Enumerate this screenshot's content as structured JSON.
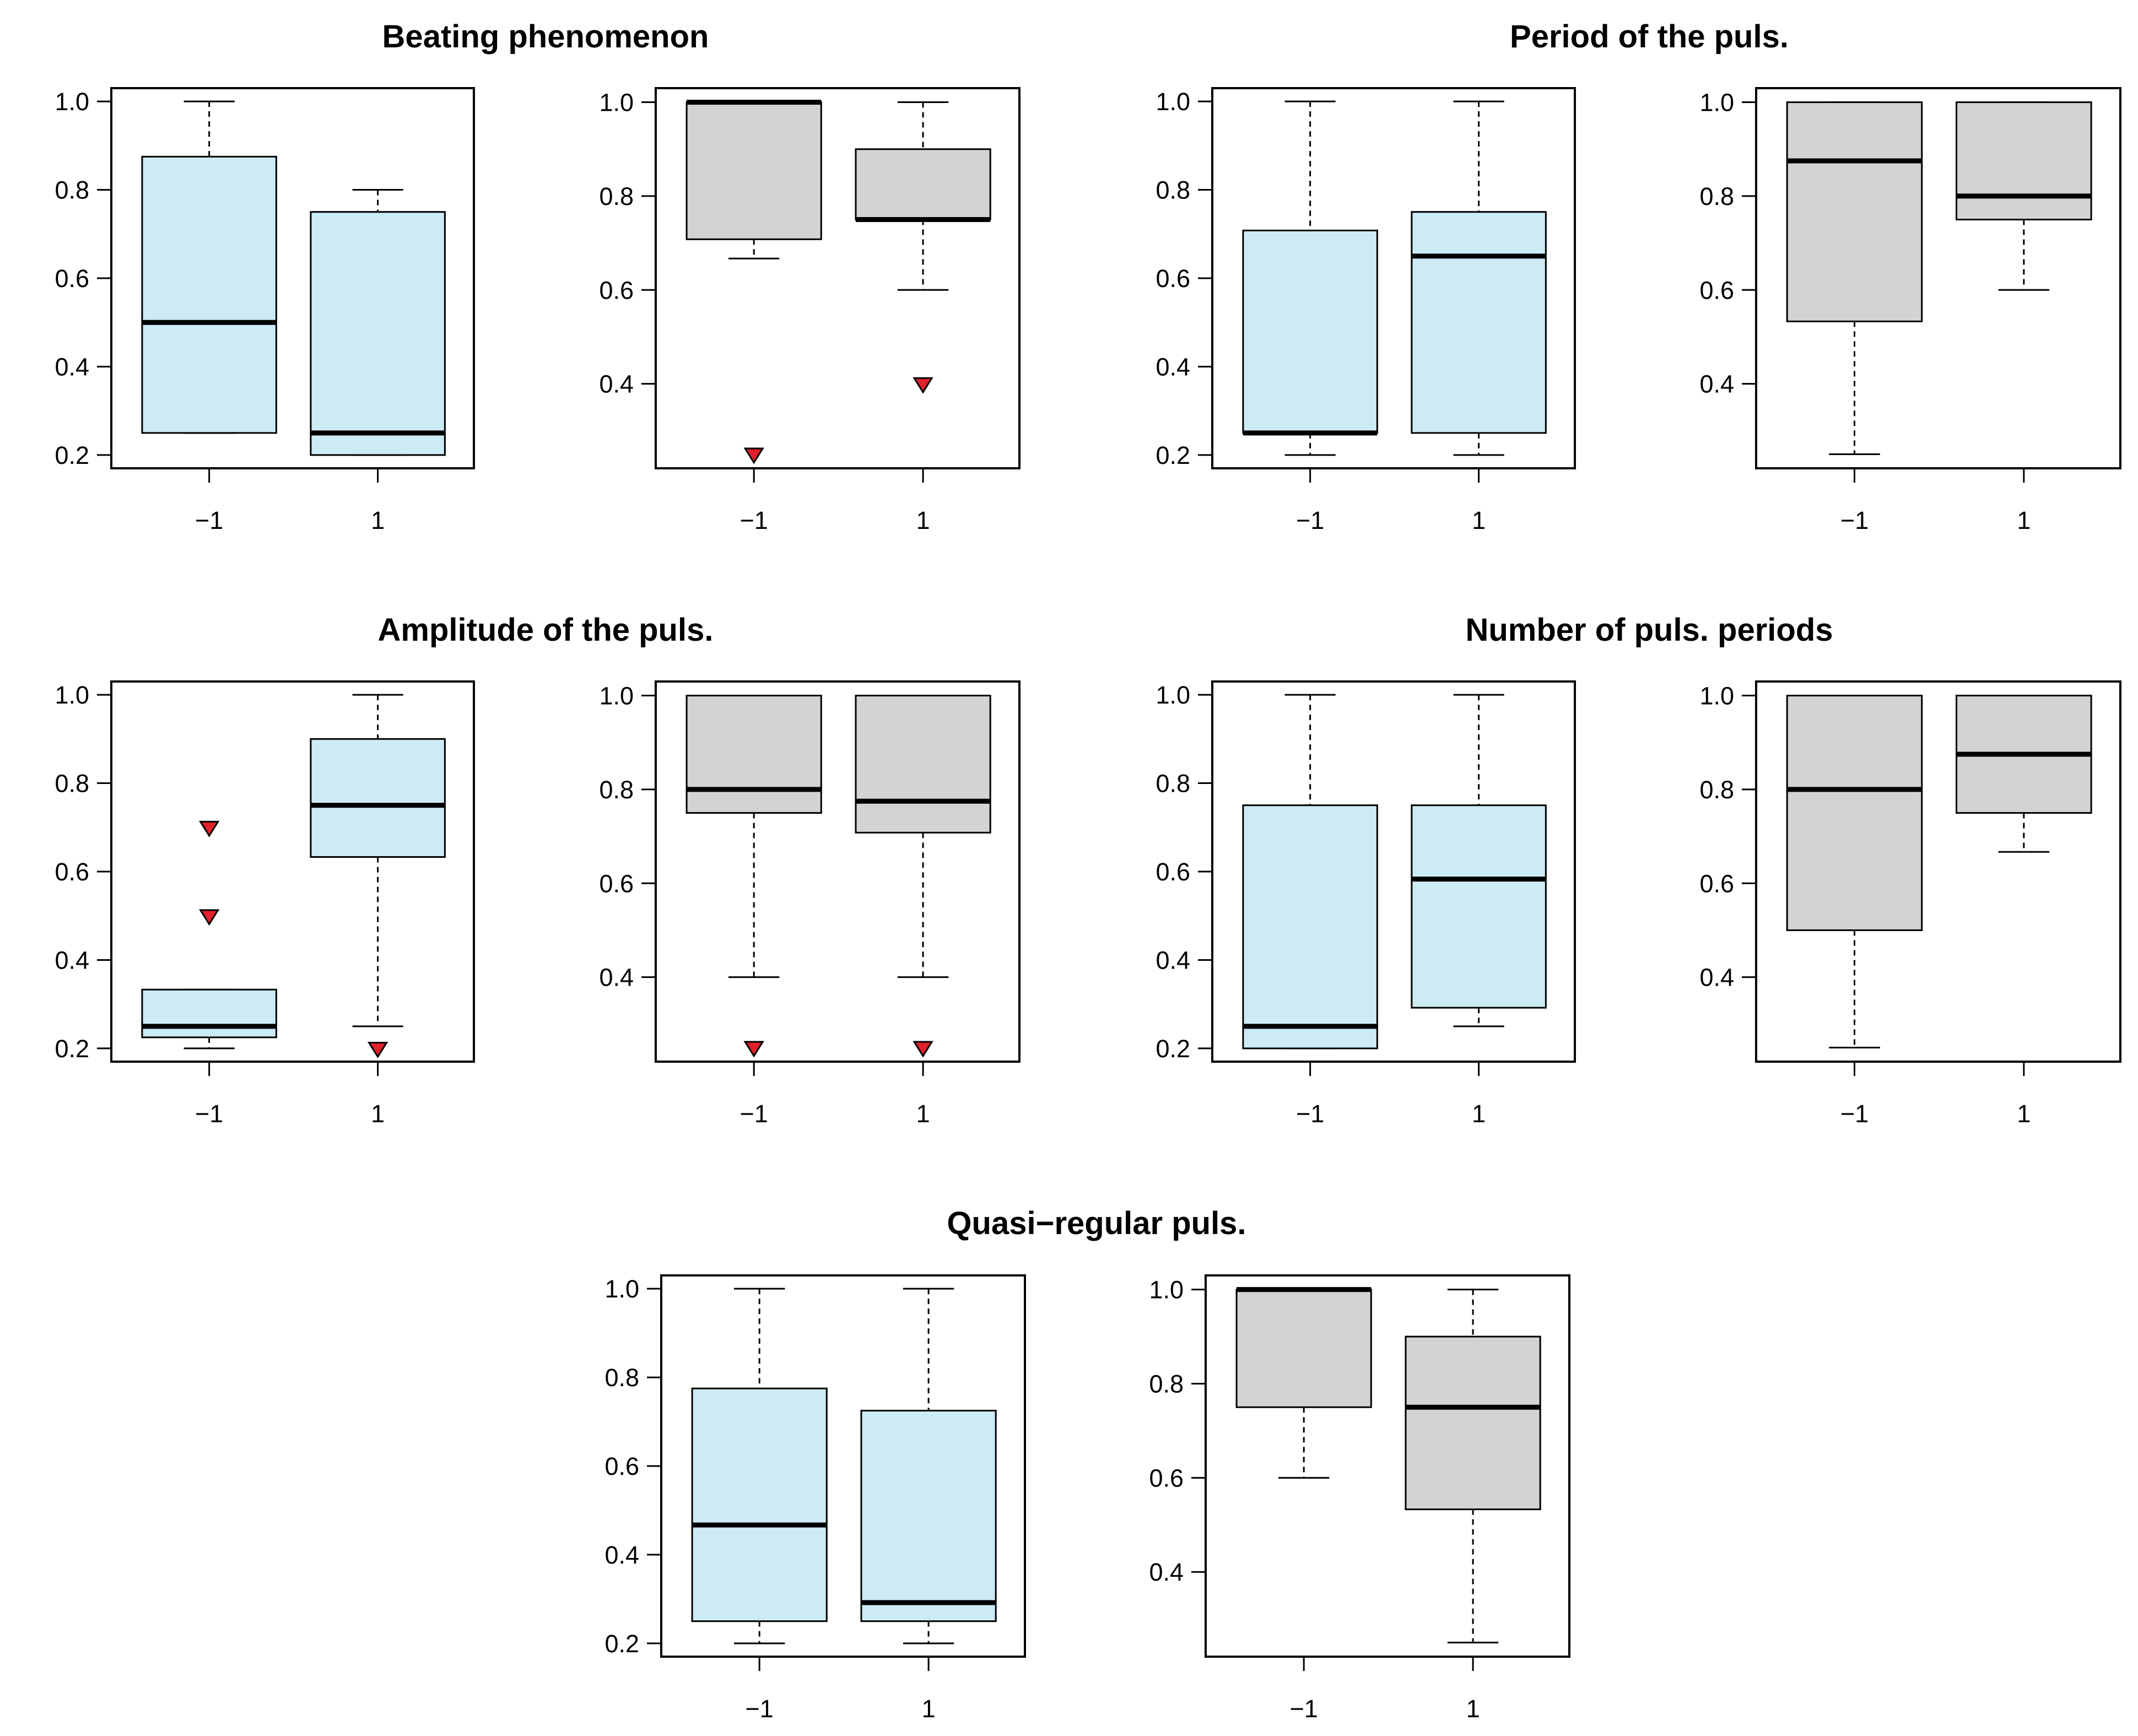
{
  "figure": {
    "colors": {
      "box_fill_a": "#cdebf4",
      "box_fill_b": "#d3d3d3",
      "outlier_fill": "#e0202a",
      "stroke": "#000000",
      "background": "#ffffff"
    }
  },
  "chart_data": [
    {
      "type": "boxplot",
      "group_title": "Beating phenomenon",
      "panel": "left",
      "fill": "box_fill_a",
      "categories": [
        "−1",
        "1"
      ],
      "ylim": [
        0.17,
        1.03
      ],
      "yticks": [
        "0.2",
        "0.4",
        "0.6",
        "0.8",
        "1.0"
      ],
      "boxes": [
        {
          "whisker_low": 0.25,
          "q1": 0.25,
          "median": 0.5,
          "q3": 0.875,
          "whisker_high": 1.0,
          "outliers": []
        },
        {
          "whisker_low": 0.2,
          "q1": 0.2,
          "median": 0.25,
          "q3": 0.75,
          "whisker_high": 0.8,
          "outliers": []
        }
      ]
    },
    {
      "type": "boxplot",
      "group_title": "",
      "panel": "right",
      "fill": "box_fill_b",
      "categories": [
        "−1",
        "1"
      ],
      "ylim": [
        0.22,
        1.03
      ],
      "yticks": [
        "0.4",
        "0.6",
        "0.8",
        "1.0"
      ],
      "boxes": [
        {
          "whisker_low": 0.667,
          "q1": 0.708,
          "median": 1.0,
          "q3": 1.0,
          "whisker_high": 1.0,
          "outliers": [
            0.25
          ]
        },
        {
          "whisker_low": 0.6,
          "q1": 0.75,
          "median": 0.75,
          "q3": 0.9,
          "whisker_high": 1.0,
          "outliers": [
            0.4
          ]
        }
      ]
    },
    {
      "type": "boxplot",
      "group_title": "Period of the puls.",
      "panel": "left",
      "fill": "box_fill_a",
      "categories": [
        "−1",
        "1"
      ],
      "ylim": [
        0.17,
        1.03
      ],
      "yticks": [
        "0.2",
        "0.4",
        "0.6",
        "0.8",
        "1.0"
      ],
      "boxes": [
        {
          "whisker_low": 0.2,
          "q1": 0.25,
          "median": 0.25,
          "q3": 0.708,
          "whisker_high": 1.0,
          "outliers": []
        },
        {
          "whisker_low": 0.2,
          "q1": 0.25,
          "median": 0.65,
          "q3": 0.75,
          "whisker_high": 1.0,
          "outliers": []
        }
      ]
    },
    {
      "type": "boxplot",
      "group_title": "",
      "panel": "right",
      "fill": "box_fill_b",
      "categories": [
        "−1",
        "1"
      ],
      "ylim": [
        0.22,
        1.03
      ],
      "yticks": [
        "0.4",
        "0.6",
        "0.8",
        "1.0"
      ],
      "boxes": [
        {
          "whisker_low": 0.25,
          "q1": 0.533,
          "median": 0.875,
          "q3": 1.0,
          "whisker_high": 1.0,
          "outliers": []
        },
        {
          "whisker_low": 0.6,
          "q1": 0.75,
          "median": 0.8,
          "q3": 1.0,
          "whisker_high": 1.0,
          "outliers": []
        }
      ]
    },
    {
      "type": "boxplot",
      "group_title": "Amplitude of the puls.",
      "panel": "left",
      "fill": "box_fill_a",
      "categories": [
        "−1",
        "1"
      ],
      "ylim": [
        0.17,
        1.03
      ],
      "yticks": [
        "0.2",
        "0.4",
        "0.6",
        "0.8",
        "1.0"
      ],
      "boxes": [
        {
          "whisker_low": 0.2,
          "q1": 0.225,
          "median": 0.25,
          "q3": 0.333,
          "whisker_high": 0.333,
          "outliers": [
            0.7,
            0.5
          ]
        },
        {
          "whisker_low": 0.25,
          "q1": 0.633,
          "median": 0.75,
          "q3": 0.9,
          "whisker_high": 1.0,
          "outliers": [
            0.2
          ]
        }
      ]
    },
    {
      "type": "boxplot",
      "group_title": "",
      "panel": "right",
      "fill": "box_fill_b",
      "categories": [
        "−1",
        "1"
      ],
      "ylim": [
        0.22,
        1.03
      ],
      "yticks": [
        "0.4",
        "0.6",
        "0.8",
        "1.0"
      ],
      "boxes": [
        {
          "whisker_low": 0.4,
          "q1": 0.75,
          "median": 0.8,
          "q3": 1.0,
          "whisker_high": 1.0,
          "outliers": [
            0.25
          ]
        },
        {
          "whisker_low": 0.4,
          "q1": 0.708,
          "median": 0.775,
          "q3": 1.0,
          "whisker_high": 1.0,
          "outliers": [
            0.25
          ]
        }
      ]
    },
    {
      "type": "boxplot",
      "group_title": "Number of puls. periods",
      "panel": "left",
      "fill": "box_fill_a",
      "categories": [
        "−1",
        "1"
      ],
      "ylim": [
        0.17,
        1.03
      ],
      "yticks": [
        "0.2",
        "0.4",
        "0.6",
        "0.8",
        "1.0"
      ],
      "boxes": [
        {
          "whisker_low": 0.2,
          "q1": 0.2,
          "median": 0.25,
          "q3": 0.75,
          "whisker_high": 1.0,
          "outliers": []
        },
        {
          "whisker_low": 0.25,
          "q1": 0.292,
          "median": 0.583,
          "q3": 0.75,
          "whisker_high": 1.0,
          "outliers": []
        }
      ]
    },
    {
      "type": "boxplot",
      "group_title": "",
      "panel": "right",
      "fill": "box_fill_b",
      "categories": [
        "−1",
        "1"
      ],
      "ylim": [
        0.22,
        1.03
      ],
      "yticks": [
        "0.4",
        "0.6",
        "0.8",
        "1.0"
      ],
      "boxes": [
        {
          "whisker_low": 0.25,
          "q1": 0.5,
          "median": 0.8,
          "q3": 1.0,
          "whisker_high": 1.0,
          "outliers": []
        },
        {
          "whisker_low": 0.667,
          "q1": 0.75,
          "median": 0.875,
          "q3": 1.0,
          "whisker_high": 1.0,
          "outliers": []
        }
      ]
    },
    {
      "type": "boxplot",
      "group_title": "Quasi−regular puls.",
      "panel": "left",
      "fill": "box_fill_a",
      "categories": [
        "−1",
        "1"
      ],
      "ylim": [
        0.17,
        1.03
      ],
      "yticks": [
        "0.2",
        "0.4",
        "0.6",
        "0.8",
        "1.0"
      ],
      "boxes": [
        {
          "whisker_low": 0.2,
          "q1": 0.25,
          "median": 0.467,
          "q3": 0.775,
          "whisker_high": 1.0,
          "outliers": []
        },
        {
          "whisker_low": 0.2,
          "q1": 0.25,
          "median": 0.292,
          "q3": 0.725,
          "whisker_high": 1.0,
          "outliers": []
        }
      ]
    },
    {
      "type": "boxplot",
      "group_title": "",
      "panel": "right",
      "fill": "box_fill_b",
      "categories": [
        "−1",
        "1"
      ],
      "ylim": [
        0.22,
        1.03
      ],
      "yticks": [
        "0.4",
        "0.6",
        "0.8",
        "1.0"
      ],
      "boxes": [
        {
          "whisker_low": 0.6,
          "q1": 0.75,
          "median": 1.0,
          "q3": 1.0,
          "whisker_high": 1.0,
          "outliers": []
        },
        {
          "whisker_low": 0.25,
          "q1": 0.533,
          "median": 0.75,
          "q3": 0.9,
          "whisker_high": 1.0,
          "outliers": []
        }
      ]
    }
  ]
}
